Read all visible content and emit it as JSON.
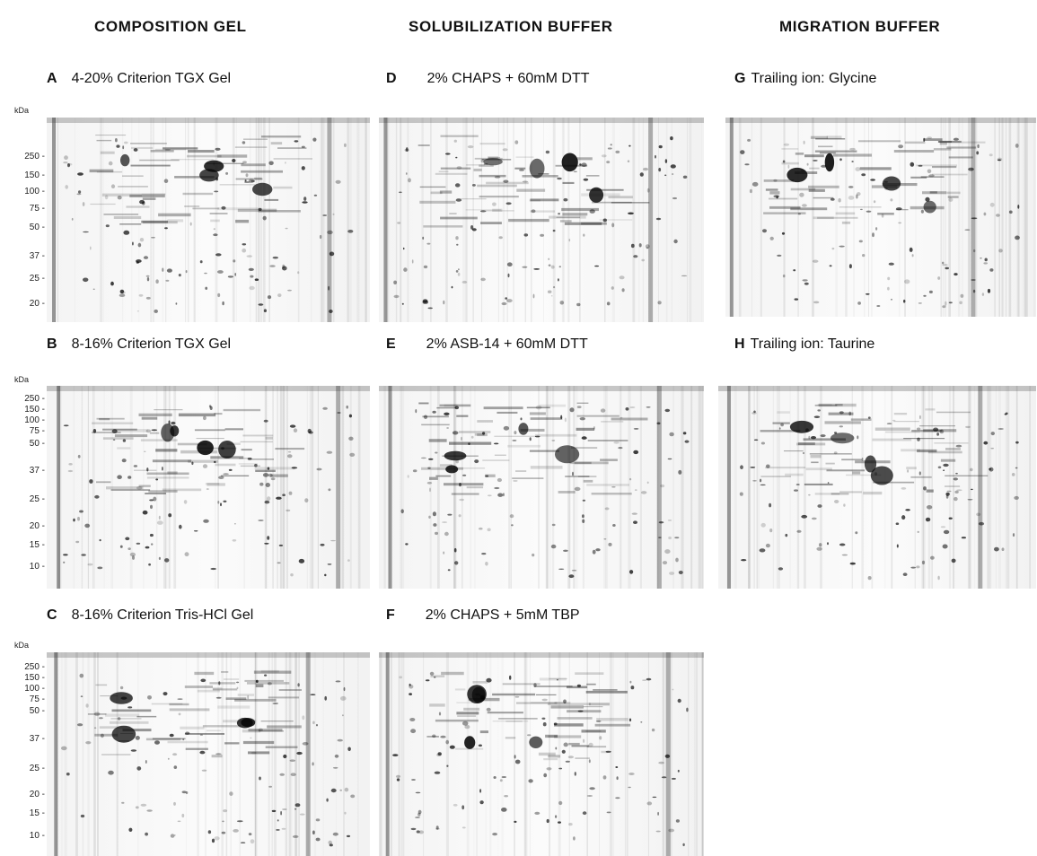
{
  "columns": [
    {
      "title": "COMPOSITION GEL"
    },
    {
      "title": "SOLUBILIZATION BUFFER"
    },
    {
      "title": "MIGRATION BUFFER"
    }
  ],
  "panels": [
    {
      "letter": "A",
      "caption": "4-20% Criterion TGX Gel"
    },
    {
      "letter": "B",
      "caption": "8-16% Criterion TGX Gel"
    },
    {
      "letter": "C",
      "caption": "8-16% Criterion Tris-HCl Gel"
    },
    {
      "letter": "D",
      "caption": "2% CHAPS + 60mM DTT"
    },
    {
      "letter": "E",
      "caption": "2% ASB-14 + 60mM DTT"
    },
    {
      "letter": "F",
      "caption": "2% CHAPS + 5mM TBP"
    },
    {
      "letter": "G",
      "caption": "Trailing ion: Glycine"
    },
    {
      "letter": "H",
      "caption": "Trailing ion: Taurine"
    }
  ],
  "kda_unit": "kDa",
  "ladders": [
    {
      "ticks": [
        "250 -",
        "150 -",
        "100 -",
        "75 -",
        "50 -",
        "37 -",
        "25 -",
        "20 -"
      ]
    },
    {
      "ticks": [
        "250 -",
        "150 -",
        "100 -",
        "75 -",
        "50 -",
        "37 -",
        "25 -",
        "20 -",
        "15 -",
        "10 -"
      ]
    },
    {
      "ticks": [
        "250 -",
        "150 -",
        "100 -",
        "75 -",
        "50 -",
        "37 -",
        "25 -",
        "20 -",
        "15 -",
        "10 -"
      ]
    }
  ]
}
